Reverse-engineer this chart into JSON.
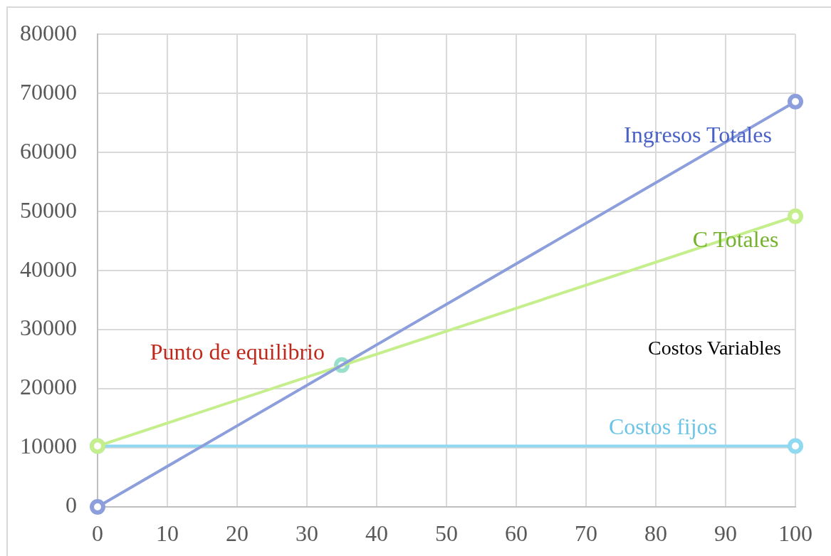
{
  "chart_data": {
    "type": "line",
    "x": [
      0,
      100
    ],
    "xlim": [
      0,
      100
    ],
    "xticks": [
      0,
      10,
      20,
      30,
      40,
      50,
      60,
      70,
      80,
      90,
      100
    ],
    "ylim": [
      0,
      80000
    ],
    "yticks": [
      0,
      10000,
      20000,
      30000,
      40000,
      50000,
      60000,
      70000,
      80000
    ],
    "grid": true,
    "marker": "circle",
    "line_style": "solid",
    "series": [
      {
        "name": "Ingresos Totales",
        "color": "#8c9edb",
        "values": [
          0,
          68600
        ]
      },
      {
        "name": "C Totales",
        "color": "#c5ee8d",
        "values": [
          10300,
          49200
        ]
      },
      {
        "name": "Costos fijos",
        "color": "#8fd9f1",
        "values": [
          10300,
          10300
        ]
      },
      {
        "name": "Punto de equilibrio",
        "type": "scatter",
        "color": "#98e0cc",
        "x": [
          35
        ],
        "values": [
          24000
        ]
      }
    ],
    "annotations": [
      "Costos Variables"
    ]
  }
}
